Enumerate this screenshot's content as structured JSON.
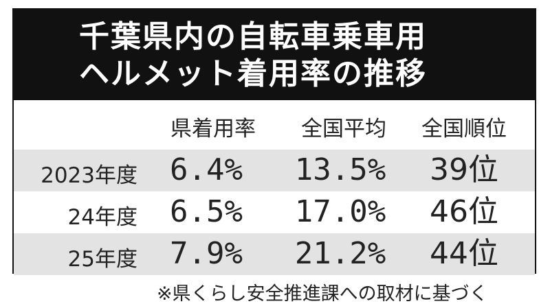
{
  "title": [
    "千葉県内の自転車乗車用",
    "ヘルメット着用率の推移"
  ],
  "chart_data": {
    "type": "table",
    "columns": [
      "県着用率",
      "全国平均",
      "全国順位"
    ],
    "rows": [
      {
        "label": "2023年度",
        "cells": [
          "6.4%",
          "13.5%",
          "39位"
        ]
      },
      {
        "label": "24年度",
        "cells": [
          "6.5%",
          "17.0%",
          "46位"
        ]
      },
      {
        "label": "25年度",
        "cells": [
          "7.9%",
          "21.2%",
          "44位"
        ]
      }
    ]
  },
  "footnote": "※県くらし安全推進課への取材に基づく",
  "colors": {
    "title_bg": "#111111",
    "row_shade": "#e3e3e3",
    "text": "#222222"
  }
}
